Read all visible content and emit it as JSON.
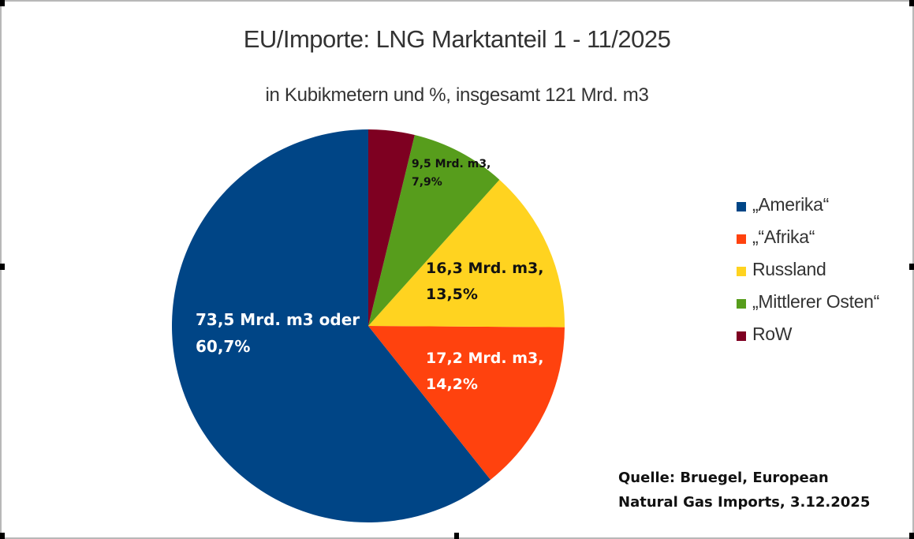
{
  "chart_data": {
    "type": "pie",
    "title": "EU/Importe: LNG Marktanteil 1 - 11/2025",
    "subtitle": "in Kubikmetern und %, insgesamt 121 Mrd. m3",
    "slices": [
      {
        "name": "„Amerika“",
        "value": 73.5,
        "percent": 60.7,
        "color": "#004586",
        "label_lines": [
          "73,5 Mrd. m3 oder",
          "60,7%"
        ],
        "label_color": "#ffffff"
      },
      {
        "name": "„“Afrika“",
        "value": 17.2,
        "percent": 14.2,
        "color": "#ff420e",
        "label_lines": [
          "17,2 Mrd. m3,",
          "14,2%"
        ],
        "label_color": "#ffffff"
      },
      {
        "name": "Russland",
        "value": 16.3,
        "percent": 13.5,
        "color": "#ffd320",
        "label_lines": [
          "16,3 Mrd. m3,",
          "13,5%"
        ],
        "label_color": "#111111"
      },
      {
        "name": "„Mittlerer Osten“",
        "value": 9.5,
        "percent": 7.9,
        "color": "#579d1c",
        "label_lines": [
          "9,5 Mrd. m3,",
          "7,9%"
        ],
        "label_color": "#111111"
      },
      {
        "name": "RoW",
        "value": 4.6,
        "percent": 3.8,
        "color": "#7e0021",
        "label_lines": [],
        "label_color": "#111111"
      }
    ],
    "legend_position": "right"
  },
  "source": {
    "lines": [
      "Quelle: Bruegel, European",
      "Natural Gas Imports, 3.12.2025"
    ]
  }
}
